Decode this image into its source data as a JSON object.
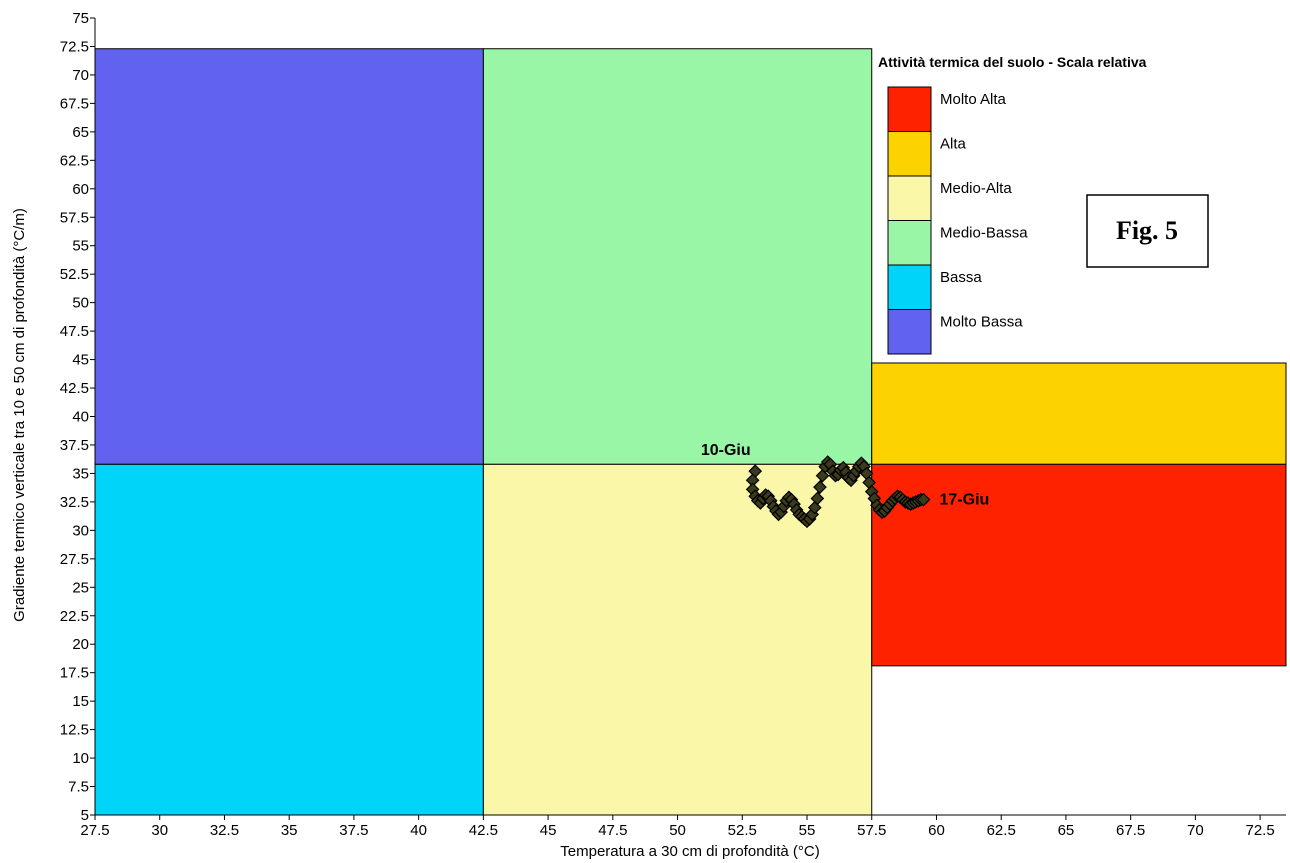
{
  "chart_data": {
    "type": "scatter",
    "xlabel": "Temperatura a 30 cm di profondità (°C)",
    "ylabel": "Gradiente termico verticale tra 10 e 50 cm di profondità (°C/m)",
    "xlim": [
      27.5,
      73.5
    ],
    "ylim": [
      5,
      75
    ],
    "x_ticks": [
      "27.5",
      "30",
      "32.5",
      "35",
      "37.5",
      "40",
      "42.5",
      "45",
      "47.5",
      "50",
      "52.5",
      "55",
      "57.5",
      "60",
      "62.5",
      "65",
      "67.5",
      "70",
      "72.5"
    ],
    "y_ticks": [
      "5",
      "7.5",
      "10",
      "12.5",
      "15",
      "17.5",
      "20",
      "22.5",
      "25",
      "27.5",
      "30",
      "32.5",
      "35",
      "37.5",
      "40",
      "42.5",
      "45",
      "47.5",
      "50",
      "52.5",
      "55",
      "57.5",
      "60",
      "62.5",
      "65",
      "67.5",
      "70",
      "72.5",
      "75"
    ],
    "grid": false,
    "legend": {
      "title": "Attività termica del suolo - Scala relativa",
      "placement": "top-right",
      "entries": [
        {
          "label": "Molto Alta",
          "color": "#ff2200"
        },
        {
          "label": "Alta",
          "color": "#fcd200"
        },
        {
          "label": "Medio-Alta",
          "color": "#fbf7a8"
        },
        {
          "label": "Medio-Bassa",
          "color": "#98f6a6"
        },
        {
          "label": "Bassa",
          "color": "#00d4f8"
        },
        {
          "label": "Molto Bassa",
          "color": "#6262f0"
        }
      ]
    },
    "regions": [
      {
        "class": "Molto Bassa",
        "x": [
          27.5,
          42.5
        ],
        "y": [
          35.8,
          72.3
        ],
        "color": "#6262f0"
      },
      {
        "class": "Medio-Bassa",
        "x": [
          42.5,
          57.5
        ],
        "y": [
          35.8,
          72.3
        ],
        "color": "#98f6a6"
      },
      {
        "class": "Bassa",
        "x": [
          27.5,
          42.5
        ],
        "y": [
          5,
          35.8
        ],
        "color": "#00d4f8"
      },
      {
        "class": "Medio-Alta",
        "x": [
          42.5,
          57.5
        ],
        "y": [
          5,
          35.8
        ],
        "color": "#fbf7a8"
      },
      {
        "class": "Alta",
        "x": [
          57.5,
          73.5
        ],
        "y": [
          35.8,
          44.7
        ],
        "color": "#fcd200"
      },
      {
        "class": "Molto Alta",
        "x": [
          57.5,
          73.5
        ],
        "y": [
          18.1,
          35.8
        ],
        "color": "#ff2200"
      }
    ],
    "series": [
      {
        "color": "#000000",
        "x": [
          53.0,
          52.9,
          52.9,
          53.0,
          53.1,
          53.2,
          53.3,
          53.4,
          53.5,
          53.6,
          53.7,
          53.8,
          53.9,
          54.0,
          54.1,
          54.2,
          54.3,
          54.4,
          54.5,
          54.6,
          54.7,
          54.8,
          54.9,
          55.0,
          55.1,
          55.2,
          55.3,
          55.4,
          55.5,
          55.6,
          55.7,
          55.8,
          55.9,
          56.0,
          56.1,
          56.2,
          56.3,
          56.4,
          56.5,
          56.6,
          56.7,
          56.8,
          56.9,
          57.0,
          57.1,
          57.2,
          57.3,
          57.4,
          57.5,
          57.6,
          57.7,
          57.8,
          57.9,
          58.0,
          58.1,
          58.2,
          58.3,
          58.4,
          58.5,
          58.6,
          58.7,
          58.8,
          58.9,
          59.0,
          59.1,
          59.2,
          59.3,
          59.4,
          59.5
        ],
        "y": [
          35.2,
          34.4,
          33.6,
          33.0,
          32.6,
          32.4,
          32.8,
          33.1,
          33.0,
          32.6,
          32.1,
          31.7,
          31.4,
          31.6,
          32.1,
          32.6,
          32.9,
          32.7,
          32.3,
          31.8,
          31.4,
          31.2,
          31.0,
          30.8,
          31.0,
          31.4,
          32.0,
          32.8,
          33.8,
          34.8,
          35.6,
          36.0,
          35.8,
          35.2,
          34.8,
          34.9,
          35.3,
          35.5,
          35.1,
          34.6,
          34.4,
          34.8,
          35.2,
          35.6,
          35.9,
          35.6,
          35.0,
          34.2,
          33.4,
          32.8,
          32.2,
          31.8,
          31.6,
          31.7,
          32.0,
          32.3,
          32.6,
          32.8,
          33.0,
          32.9,
          32.7,
          32.5,
          32.4,
          32.3,
          32.4,
          32.5,
          32.6,
          32.7,
          32.7
        ]
      }
    ],
    "annotations": [
      {
        "text": "10-Giu",
        "x": 52.9,
        "y": 35.2
      },
      {
        "text": "17-Giu",
        "x": 59.5,
        "y": 32.7
      }
    ],
    "figure_label": "Fig. 5"
  }
}
